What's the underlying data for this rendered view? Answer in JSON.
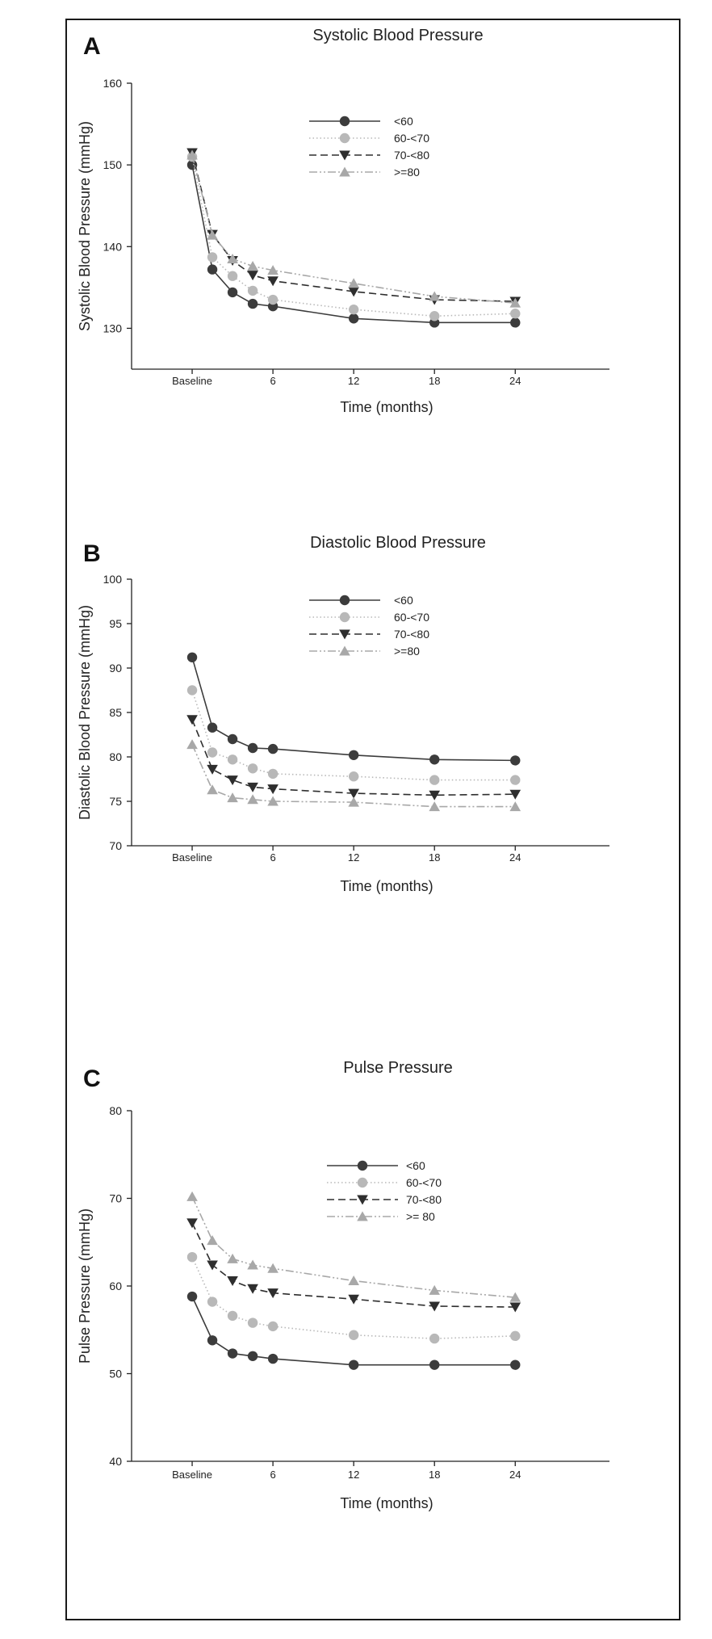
{
  "colors": {
    "s60": "#3c3c3c",
    "s60_70": "#b8b8b8",
    "s70_80": "#2e2e2e",
    "s80": "#a8a8a8"
  },
  "chart_data": [
    {
      "type": "line",
      "panel_letter": "A",
      "title": "Systolic Blood Pressure",
      "xlabel": "Time (months)",
      "ylabel": "Systolic Blood Pressure (mmHg)",
      "xlim": [
        -4.5,
        31
      ],
      "ylim": [
        125,
        160
      ],
      "yticks": [
        130,
        140,
        150,
        160
      ],
      "xticks": [
        {
          "value": 0,
          "label": "Baseline"
        },
        {
          "value": 6,
          "label": "6"
        },
        {
          "value": 12,
          "label": "12"
        },
        {
          "value": 18,
          "label": "18"
        },
        {
          "value": 24,
          "label": "24"
        }
      ],
      "x": [
        0,
        1.5,
        3,
        4.5,
        6,
        12,
        18,
        24
      ],
      "legend_placement": "top-right",
      "series": [
        {
          "name": "<60",
          "marker": "circle",
          "dash": "solid",
          "color": "s60",
          "values": [
            150.0,
            137.2,
            134.4,
            133.0,
            132.7,
            131.2,
            130.7,
            130.7
          ]
        },
        {
          "name": "60-<70",
          "marker": "circle",
          "dash": "dotted",
          "color": "s60_70",
          "values": [
            151.0,
            138.7,
            136.4,
            134.6,
            133.5,
            132.3,
            131.5,
            131.8
          ]
        },
        {
          "name": "70-<80",
          "marker": "triangle-down",
          "dash": "dashed",
          "color": "s70_80",
          "values": [
            151.5,
            141.5,
            138.3,
            136.5,
            135.8,
            134.5,
            133.5,
            133.3
          ]
        },
        {
          "name": ">=80",
          "marker": "triangle-up",
          "dash": "dashdotdot",
          "color": "s80",
          "values": [
            151.2,
            141.4,
            138.5,
            137.6,
            137.1,
            135.5,
            133.9,
            133.1
          ]
        }
      ]
    },
    {
      "type": "line",
      "panel_letter": "B",
      "title": "Diastolic Blood Pressure",
      "xlabel": "Time (months)",
      "ylabel": "Diastolic Blood Pressure (mmHg)",
      "xlim": [
        -4.5,
        31
      ],
      "ylim": [
        70,
        100
      ],
      "yticks": [
        70,
        75,
        80,
        85,
        90,
        95,
        100
      ],
      "xticks": [
        {
          "value": 0,
          "label": "Baseline"
        },
        {
          "value": 6,
          "label": "6"
        },
        {
          "value": 12,
          "label": "12"
        },
        {
          "value": 18,
          "label": "18"
        },
        {
          "value": 24,
          "label": "24"
        }
      ],
      "x": [
        0,
        1.5,
        3,
        4.5,
        6,
        12,
        18,
        24
      ],
      "legend_placement": "top-right",
      "series": [
        {
          "name": "<60",
          "marker": "circle",
          "dash": "solid",
          "color": "s60",
          "values": [
            91.2,
            83.3,
            82.0,
            81.0,
            80.9,
            80.2,
            79.7,
            79.6
          ]
        },
        {
          "name": "60-<70",
          "marker": "circle",
          "dash": "dotted",
          "color": "s60_70",
          "values": [
            87.5,
            80.5,
            79.7,
            78.7,
            78.1,
            77.8,
            77.4,
            77.4
          ]
        },
        {
          "name": "70-<80",
          "marker": "triangle-down",
          "dash": "dashed",
          "color": "s70_80",
          "values": [
            84.2,
            78.6,
            77.4,
            76.6,
            76.4,
            75.9,
            75.7,
            75.8
          ]
        },
        {
          "name": ">=80",
          "marker": "triangle-up",
          "dash": "dashdotdot",
          "color": "s80",
          "values": [
            81.4,
            76.3,
            75.4,
            75.2,
            75.0,
            74.9,
            74.4,
            74.4
          ]
        }
      ]
    },
    {
      "type": "line",
      "panel_letter": "C",
      "title": "Pulse Pressure",
      "xlabel": "Time (months)",
      "ylabel": "Pulse Pressure (mmHg)",
      "xlim": [
        -4.5,
        31
      ],
      "ylim": [
        40,
        80
      ],
      "yticks": [
        40,
        50,
        60,
        70,
        80
      ],
      "xticks": [
        {
          "value": 0,
          "label": "Baseline"
        },
        {
          "value": 6,
          "label": "6"
        },
        {
          "value": 12,
          "label": "12"
        },
        {
          "value": 18,
          "label": "18"
        },
        {
          "value": 24,
          "label": "24"
        }
      ],
      "x": [
        0,
        1.5,
        3,
        4.5,
        6,
        12,
        18,
        24
      ],
      "legend_placement": "top-right",
      "series": [
        {
          "name": "<60",
          "marker": "circle",
          "dash": "solid",
          "color": "s60",
          "values": [
            58.8,
            53.8,
            52.3,
            52.0,
            51.7,
            51.0,
            51.0,
            51.0
          ]
        },
        {
          "name": "60-<70",
          "marker": "circle",
          "dash": "dotted",
          "color": "s60_70",
          "values": [
            63.3,
            58.2,
            56.6,
            55.8,
            55.4,
            54.4,
            54.0,
            54.3
          ]
        },
        {
          "name": "70-<80",
          "marker": "triangle-down",
          "dash": "dashed",
          "color": "s70_80",
          "values": [
            67.2,
            62.4,
            60.6,
            59.7,
            59.2,
            58.5,
            57.7,
            57.6
          ]
        },
        {
          "name": ">= 80",
          "marker": "triangle-up",
          "dash": "dashdotdot",
          "color": "s80",
          "values": [
            70.2,
            65.2,
            63.1,
            62.4,
            62.0,
            60.6,
            59.5,
            58.7
          ]
        }
      ]
    }
  ]
}
